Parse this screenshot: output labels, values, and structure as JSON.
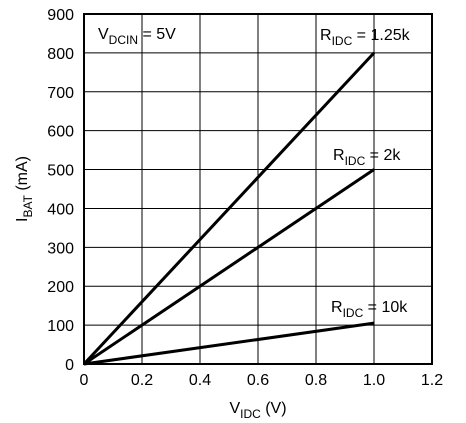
{
  "chart_data": {
    "type": "line",
    "title": "",
    "xlabel": {
      "main": "V",
      "sub": "IDC",
      "unit": " (V)"
    },
    "ylabel": {
      "main": "I",
      "sub": "BAT",
      "unit": " (mA)"
    },
    "xlim": [
      0,
      1.2
    ],
    "ylim": [
      0,
      900
    ],
    "xticks": [
      "0",
      "0.2",
      "0.4",
      "0.6",
      "0.8",
      "1.0",
      "1.2"
    ],
    "yticks": [
      "0",
      "100",
      "200",
      "300",
      "400",
      "500",
      "600",
      "700",
      "800",
      "900"
    ],
    "grid": true,
    "condition": {
      "main": "V",
      "sub": "DCIN",
      "value": " = 5V"
    },
    "series": [
      {
        "name": {
          "main": "R",
          "sub": "IDC",
          "value": " = 1.25k"
        },
        "x": [
          0,
          1.0
        ],
        "y": [
          0,
          800
        ]
      },
      {
        "name": {
          "main": "R",
          "sub": "IDC",
          "value": " = 2k"
        },
        "x": [
          0,
          1.0
        ],
        "y": [
          0,
          500
        ]
      },
      {
        "name": {
          "main": "R",
          "sub": "IDC",
          "value": " = 10k"
        },
        "x": [
          0,
          1.0
        ],
        "y": [
          0,
          105
        ]
      }
    ]
  }
}
